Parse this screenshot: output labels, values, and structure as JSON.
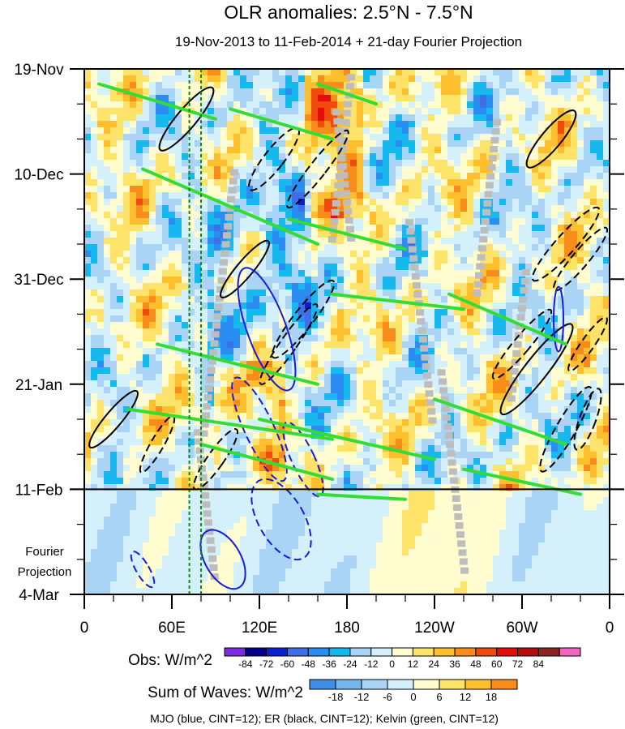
{
  "chart_data": {
    "type": "heatmap",
    "title": "OLR anomalies: 2.5°N - 7.5°N",
    "subtitle": "19-Nov-2013 to 11-Feb-2014 + 21-day Fourier Projection",
    "x_ticks": [
      "0",
      "60E",
      "120E",
      "180",
      "120W",
      "60W",
      "0"
    ],
    "x_tick_values": [
      0,
      60,
      120,
      180,
      240,
      300,
      360
    ],
    "xlim": [
      0,
      360
    ],
    "y_ticks": [
      "19-Nov",
      "10-Dec",
      "31-Dec",
      "21-Jan",
      "11-Feb",
      "4-Mar"
    ],
    "y_tick_days": [
      0,
      21,
      42,
      63,
      84,
      105
    ],
    "ylim_days": [
      0,
      105
    ],
    "observation_end": "11-Feb",
    "projection_label": [
      "Fourier",
      "Projection"
    ],
    "reference_longitudes": [
      72,
      80
    ],
    "obs_colorbar": {
      "label": "Obs: W/m^2",
      "levels": [
        -84,
        -72,
        -60,
        -48,
        -36,
        -24,
        -12,
        0,
        12,
        24,
        36,
        48,
        60,
        72,
        84
      ],
      "colors": [
        "#7b2be0",
        "#00008b",
        "#0a1fcf",
        "#3e6fe6",
        "#2b8cf2",
        "#17b8ee",
        "#a9d4f5",
        "#d4f0fb",
        "#fffdd0",
        "#fde36a",
        "#fdbf2d",
        "#f98d1c",
        "#f04a0e",
        "#e30d0d",
        "#b50d0d",
        "#8c2424",
        "#f266c0"
      ]
    },
    "waves_colorbar": {
      "label": "Sum of Waves: W/m^2",
      "levels": [
        -18,
        -12,
        -6,
        0,
        6,
        12,
        18
      ],
      "colors": [
        "#3e8ee6",
        "#75b8ee",
        "#a9d4f5",
        "#d4f0fb",
        "#fffdd0",
        "#fde36a",
        "#fdbf2d",
        "#f98d1c"
      ]
    },
    "contour_legend": "MJO (blue, CINT=12); ER (black, CINT=12); Kelvin (green, CINT=12)",
    "contour_colors": {
      "mjo": "#1a1adf",
      "er": "#000000",
      "kelvin": "#33dd33"
    }
  }
}
